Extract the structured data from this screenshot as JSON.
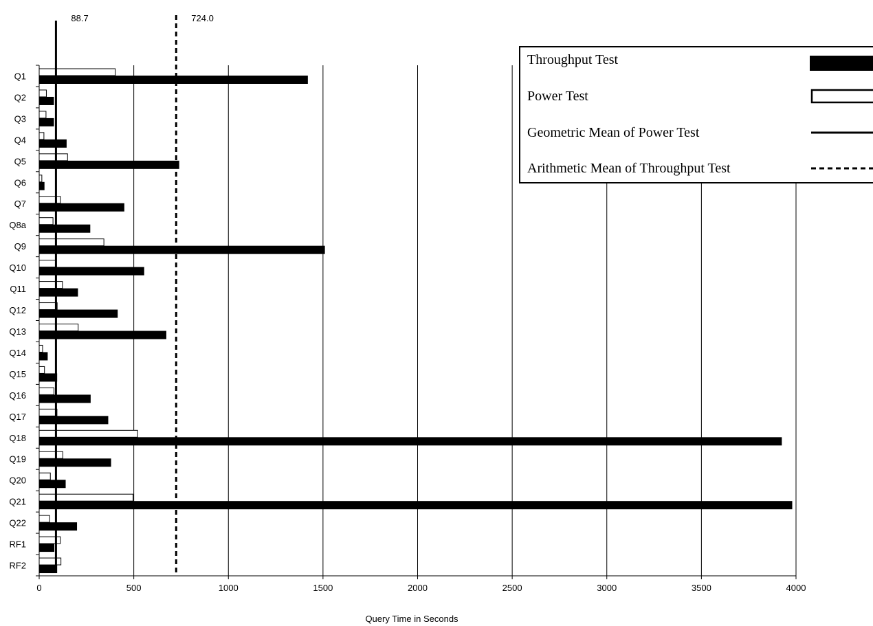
{
  "chart_data": {
    "type": "bar",
    "orientation": "horizontal",
    "categories": [
      "Q1",
      "Q2",
      "Q3",
      "Q4",
      "Q5",
      "Q6",
      "Q7",
      "Q8a",
      "Q9",
      "Q10",
      "Q11",
      "Q12",
      "Q13",
      "Q14",
      "Q15",
      "Q16",
      "Q17",
      "Q18",
      "Q19",
      "Q20",
      "Q21",
      "Q22",
      "RF1",
      "RF2"
    ],
    "series": [
      {
        "name": "Power Test",
        "values": [
          402,
          38,
          36,
          25,
          150,
          14,
          112,
          73,
          342,
          90,
          123,
          95,
          206,
          18,
          28,
          78,
          94,
          520,
          125,
          59,
          496,
          55,
          112,
          115
        ]
      },
      {
        "name": "Throughput Test",
        "values": [
          1420,
          78,
          78,
          145,
          740,
          28,
          450,
          270,
          1510,
          555,
          205,
          415,
          672,
          45,
          95,
          272,
          365,
          3925,
          380,
          140,
          3980,
          200,
          80,
          95
        ]
      }
    ],
    "reference_lines": [
      {
        "name": "Geometric Mean of Power Test",
        "value": 88.7,
        "label": "88.7",
        "style": "solid"
      },
      {
        "name": "Arithmetic Mean of Throughput Test",
        "value": 724.0,
        "label": "724.0",
        "style": "dashed"
      }
    ],
    "xlabel": "Query Time in Seconds",
    "xticks": [
      "0",
      "500",
      "1000",
      "1500",
      "2000",
      "2500",
      "3000",
      "3500",
      "4000"
    ],
    "xlim": [
      0,
      4000
    ],
    "grid": "vertical",
    "legend_position": "top-right",
    "colors": {
      "throughput": "#000000",
      "power": "#ffffff",
      "outline": "#000000"
    }
  },
  "legend": {
    "throughput": "Throughput Test",
    "power": "Power Test",
    "geo": "Geometric Mean of Power Test",
    "arith": "Arithmetic Mean of Throughput Test"
  }
}
